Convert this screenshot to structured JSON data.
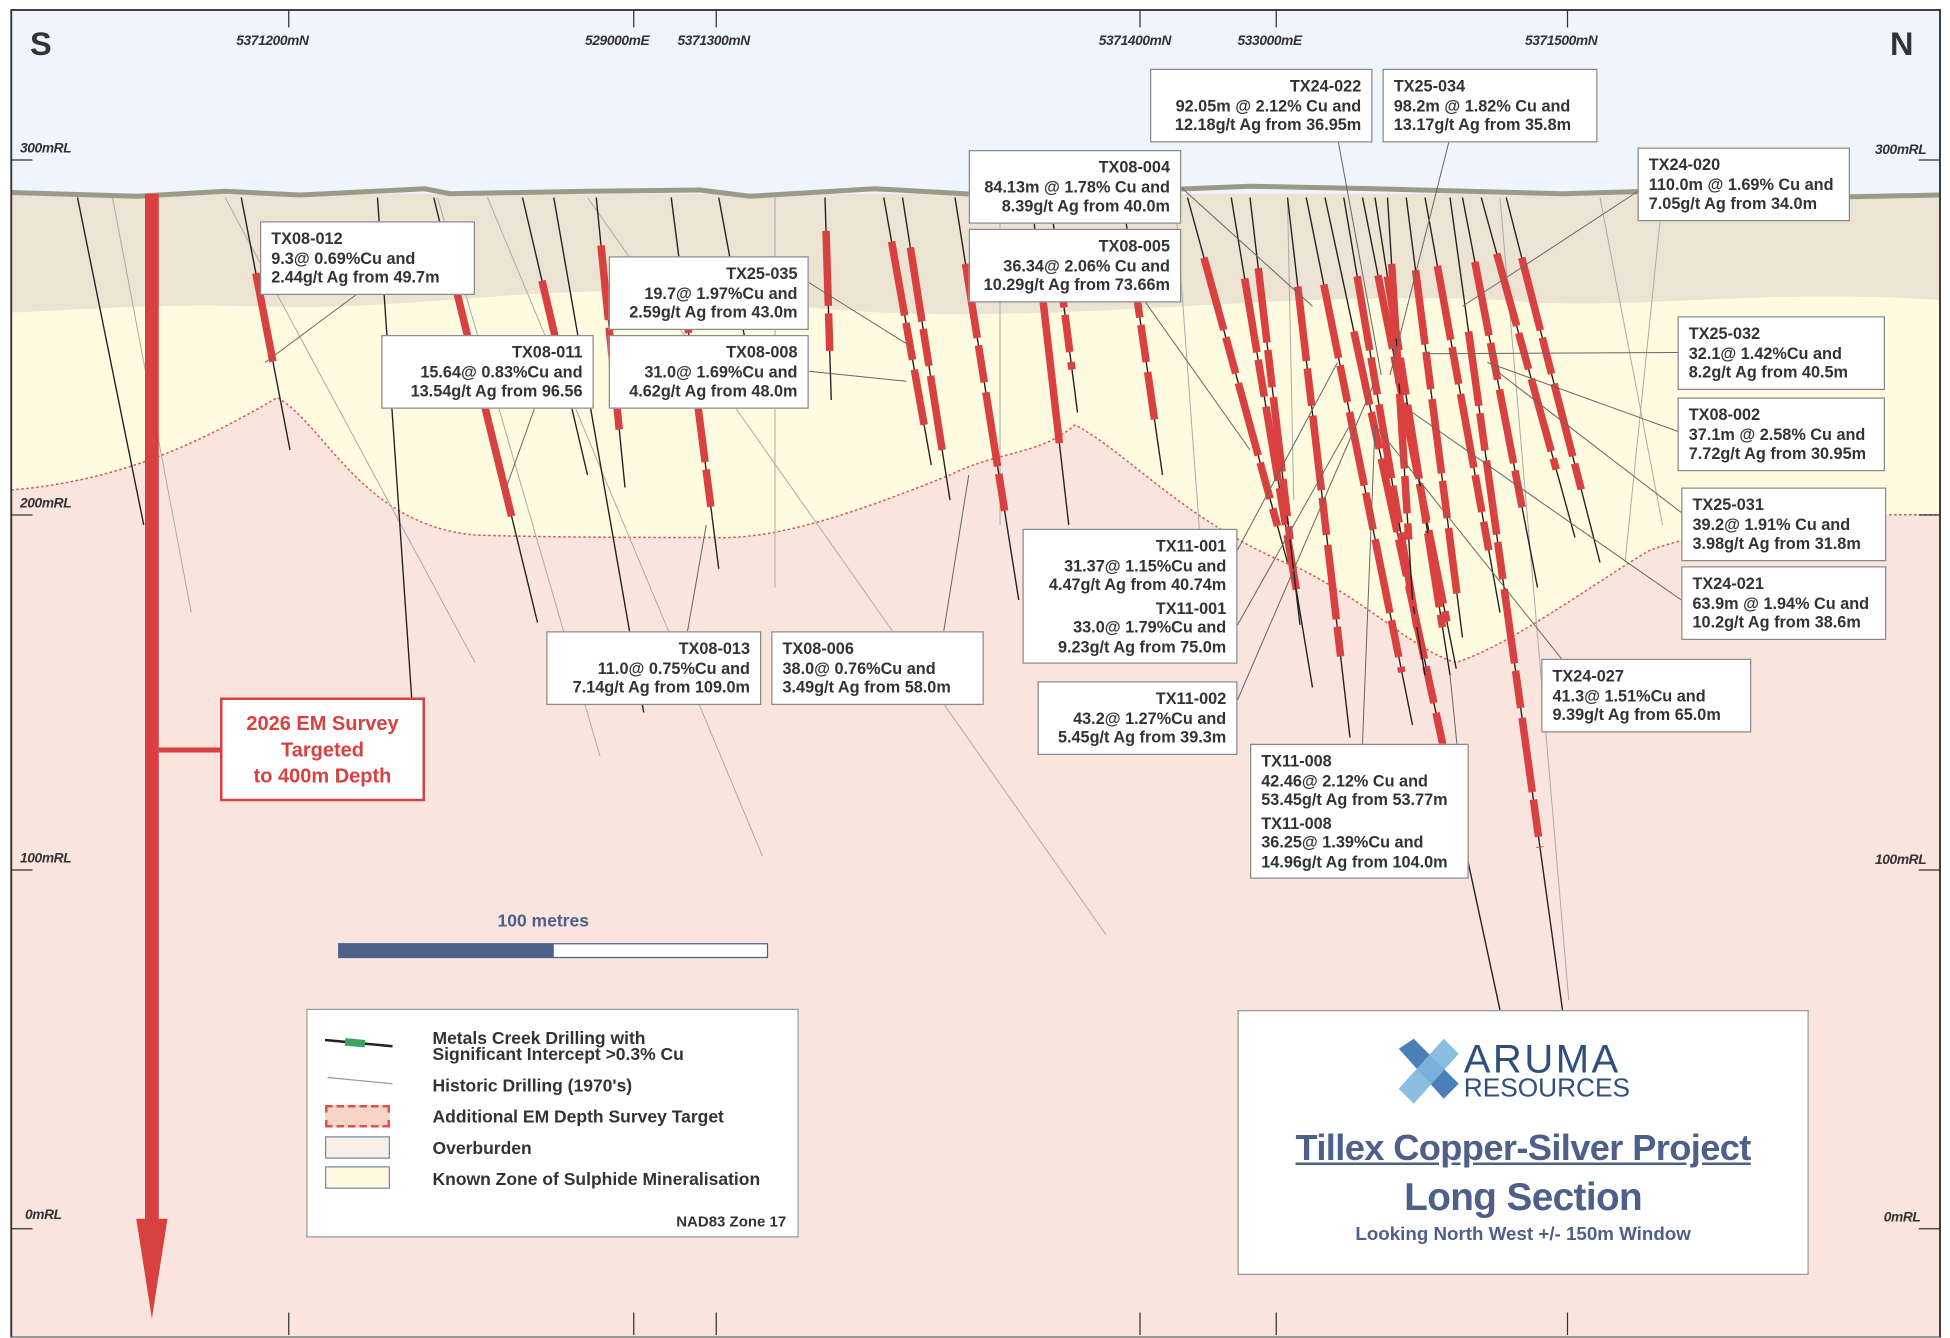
{
  "compass": {
    "south": "S",
    "north": "N"
  },
  "grid_labels_top": [
    "5371200mN",
    "529000mE",
    "5371300mN",
    "5371400mN",
    "533000mE",
    "5371500mN"
  ],
  "rl_labels": [
    "300mRL",
    "200mRL",
    "100mRL",
    "0mRL"
  ],
  "em_survey": {
    "line1": "2026 EM Survey",
    "line2": "Targeted",
    "line3": "to 400m Depth"
  },
  "scale_bar": {
    "label": "100 metres"
  },
  "callouts": [
    {
      "id": "TX08-012",
      "lines": [
        "9.3@ 0.69%Cu and",
        "2.44g/t Ag from 49.7m"
      ]
    },
    {
      "id": "TX08-011",
      "lines": [
        "15.64@ 0.83%Cu and",
        "13.54g/t Ag from 96.56"
      ]
    },
    {
      "id": "TX25-035",
      "lines": [
        "19.7@ 1.97%Cu and",
        "2.59g/t Ag from 43.0m"
      ]
    },
    {
      "id": "TX08-008",
      "lines": [
        "31.0@ 1.69%Cu and",
        "4.62g/t Ag from 48.0m"
      ]
    },
    {
      "id": "TX08-004",
      "lines": [
        "84.13m @ 1.78% Cu and",
        "8.39g/t Ag from 40.0m"
      ]
    },
    {
      "id": "TX08-005",
      "lines": [
        "36.34@ 2.06% Cu and",
        "10.29g/t Ag from 73.66m"
      ]
    },
    {
      "id": "TX24-022",
      "lines": [
        "92.05m @ 2.12% Cu and",
        "12.18g/t Ag from 36.95m"
      ]
    },
    {
      "id": "TX25-034",
      "lines": [
        "98.2m @ 1.82% Cu and",
        "13.17g/t Ag from 35.8m"
      ]
    },
    {
      "id": "TX24-020",
      "lines": [
        "110.0m @ 1.69% Cu and",
        "7.05g/t Ag from 34.0m"
      ]
    },
    {
      "id": "TX25-032",
      "lines": [
        "32.1@ 1.42%Cu and",
        "8.2g/t Ag from 40.5m"
      ]
    },
    {
      "id": "TX08-002",
      "lines": [
        "37.1m @ 2.58% Cu and",
        "7.72g/t Ag from 30.95m"
      ]
    },
    {
      "id": "TX25-031",
      "lines": [
        "39.2@ 1.91% Cu and",
        "3.98g/t Ag from 31.8m"
      ]
    },
    {
      "id": "TX24-021",
      "lines": [
        "63.9m @ 1.94% Cu and",
        "10.2g/t Ag from 38.6m"
      ]
    },
    {
      "id": "TX24-027",
      "lines": [
        "41.3@ 1.51%Cu and",
        "9.39g/t Ag from 65.0m"
      ]
    },
    {
      "id": "TX11-001",
      "lines": [
        "31.37@ 1.15%Cu and",
        "4.47g/t Ag from 40.74m"
      ],
      "id2": "TX11-001",
      "lines2": [
        "33.0@ 1.79%Cu and",
        "9.23g/t Ag from 75.0m"
      ]
    },
    {
      "id": "TX11-002",
      "lines": [
        "43.2@ 1.27%Cu and",
        "5.45g/t Ag from 39.3m"
      ]
    },
    {
      "id": "TX11-008",
      "lines": [
        "42.46@ 2.12% Cu and",
        "53.45g/t Ag from 53.77m"
      ],
      "id2": "TX11-008",
      "lines2": [
        "36.25@ 1.39%Cu and",
        "14.96g/t Ag from 104.0m"
      ]
    },
    {
      "id": "TX08-013",
      "lines": [
        "11.0@ 0.75%Cu and",
        "7.14g/t Ag from 109.0m"
      ]
    },
    {
      "id": "TX08-006",
      "lines": [
        "38.0@ 0.76%Cu and",
        "3.49g/t Ag from 58.0m"
      ]
    }
  ],
  "legend": {
    "items": [
      "Metals Creek Drilling with",
      "Significant Intercept >0.3% Cu",
      "Historic Drilling (1970's)",
      "Additional EM Depth Survey Target",
      "Overburden",
      "Known Zone of Sulphide Mineralisation"
    ],
    "projection": "NAD83 Zone 17"
  },
  "title_block": {
    "brand_top": "ARUMA",
    "brand_bottom": "RESOURCES",
    "title": "Tillex Copper-Silver Project",
    "subtitle": "Long Section",
    "note": "Looking North West  +/- 150m Window"
  },
  "colors": {
    "sky": "#eef5fc",
    "overburden": "#ede3d3",
    "sulphide_zone": "#fefbe0",
    "em_target": "#f9e4de",
    "intercept": "#d94040",
    "title": "#4d5f8a"
  }
}
